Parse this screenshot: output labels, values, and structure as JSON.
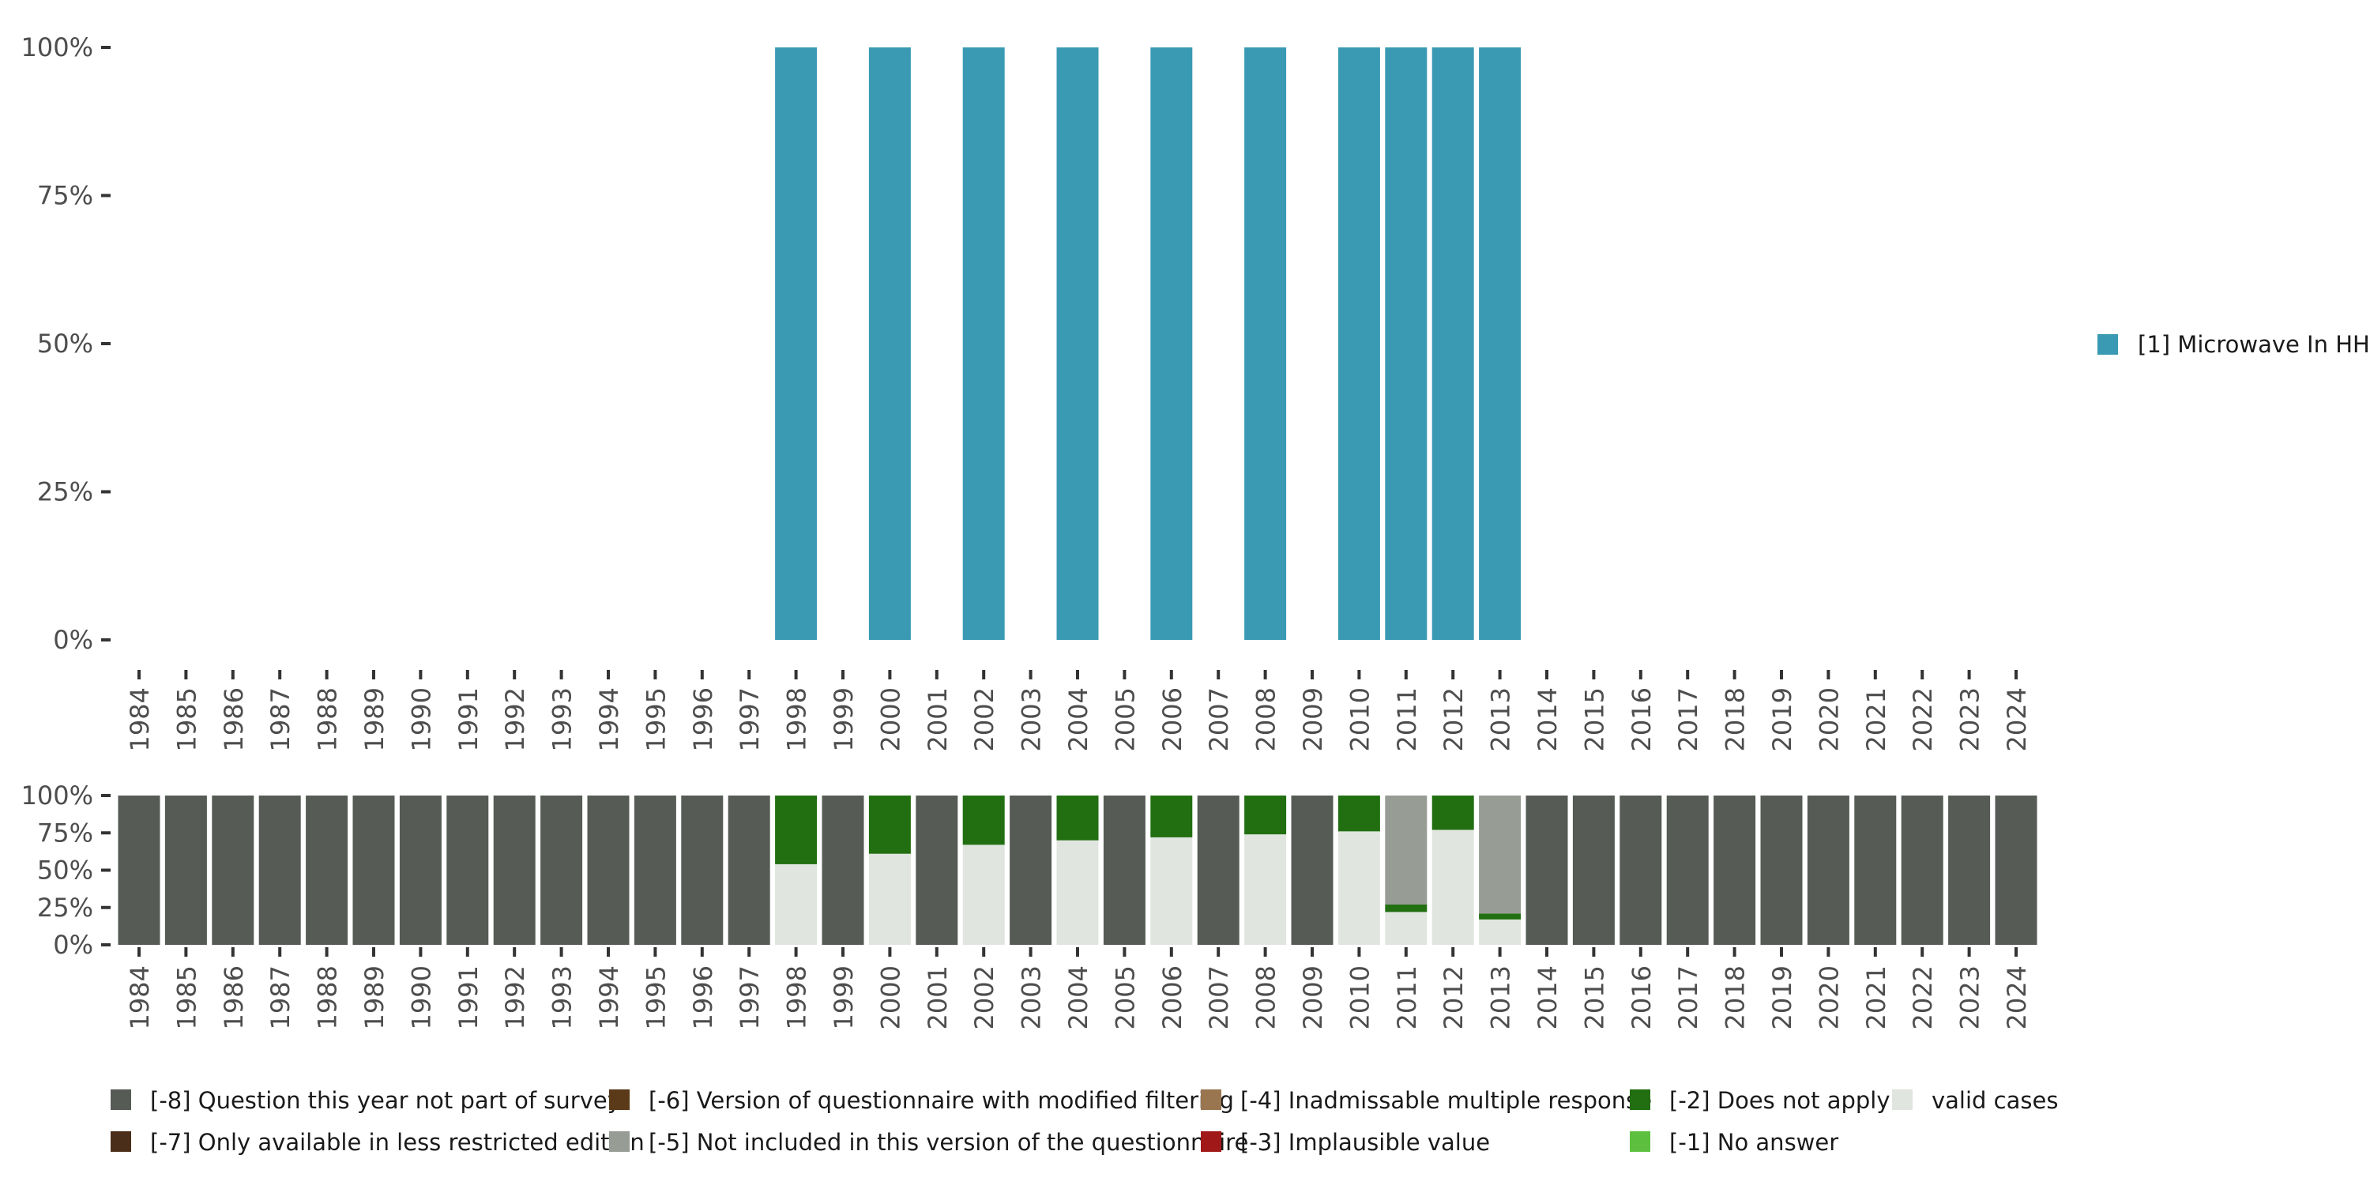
{
  "chart_data": [
    {
      "type": "bar",
      "name": "valid-value-distribution",
      "categories": [
        "1984",
        "1985",
        "1986",
        "1987",
        "1988",
        "1989",
        "1990",
        "1991",
        "1992",
        "1993",
        "1994",
        "1995",
        "1996",
        "1997",
        "1998",
        "1999",
        "2000",
        "2001",
        "2002",
        "2003",
        "2004",
        "2005",
        "2006",
        "2007",
        "2008",
        "2009",
        "2010",
        "2011",
        "2012",
        "2013",
        "2014",
        "2015",
        "2016",
        "2017",
        "2018",
        "2019",
        "2020",
        "2021",
        "2022",
        "2023",
        "2024"
      ],
      "y_ticks": [
        "0%",
        "25%",
        "50%",
        "75%",
        "100%"
      ],
      "ylim": [
        0,
        100
      ],
      "series": [
        {
          "name": "[1] Microwave In HH",
          "color": "#3a9ab3",
          "values": {
            "1998": 100,
            "2000": 100,
            "2002": 100,
            "2004": 100,
            "2006": 100,
            "2008": 100,
            "2010": 100,
            "2011": 100,
            "2012": 100,
            "2013": 100
          }
        }
      ],
      "legend_position": "right"
    },
    {
      "type": "bar",
      "name": "missing-value-distribution",
      "stacked": true,
      "categories": [
        "1984",
        "1985",
        "1986",
        "1987",
        "1988",
        "1989",
        "1990",
        "1991",
        "1992",
        "1993",
        "1994",
        "1995",
        "1996",
        "1997",
        "1998",
        "1999",
        "2000",
        "2001",
        "2002",
        "2003",
        "2004",
        "2005",
        "2006",
        "2007",
        "2008",
        "2009",
        "2010",
        "2011",
        "2012",
        "2013",
        "2014",
        "2015",
        "2016",
        "2017",
        "2018",
        "2019",
        "2020",
        "2021",
        "2022",
        "2023",
        "2024"
      ],
      "y_ticks": [
        "0%",
        "25%",
        "50%",
        "75%",
        "100%"
      ],
      "ylim": [
        0,
        100
      ],
      "stack_order": [
        "valid",
        "m1",
        "m2",
        "m3",
        "m4",
        "m5",
        "m6",
        "m7",
        "m8"
      ],
      "series": [
        {
          "key": "m8",
          "name": "[-8] Question this year not part of survey",
          "color": "#565b56"
        },
        {
          "key": "m7",
          "name": "[-7] Only available in less restricted edition",
          "color": "#4a2e1a"
        },
        {
          "key": "m6",
          "name": "[-6] Version of questionnaire with modified filtering",
          "color": "#5a3a18"
        },
        {
          "key": "m5",
          "name": "[-5] Not included in this version of the questionnaire",
          "color": "#979c94"
        },
        {
          "key": "m4",
          "name": "[-4] Inadmissable multiple response",
          "color": "#9a7650"
        },
        {
          "key": "m3",
          "name": "[-3] Implausible value",
          "color": "#a01818"
        },
        {
          "key": "m2",
          "name": "[-2] Does not apply",
          "color": "#226f12"
        },
        {
          "key": "m1",
          "name": "[-1] No answer",
          "color": "#5cc03e"
        },
        {
          "key": "valid",
          "name": "valid cases",
          "color": "#e1e5df"
        }
      ],
      "values": {
        "1998": {
          "valid": 54,
          "m2": 46
        },
        "2000": {
          "valid": 61,
          "m2": 39
        },
        "2002": {
          "valid": 67,
          "m2": 33
        },
        "2004": {
          "valid": 70,
          "m2": 30
        },
        "2006": {
          "valid": 72,
          "m2": 28
        },
        "2008": {
          "valid": 74,
          "m2": 26
        },
        "2010": {
          "valid": 76,
          "m2": 24
        },
        "2011": {
          "valid": 22,
          "m2": 5,
          "m5": 73
        },
        "2012": {
          "valid": 77,
          "m2": 23
        },
        "2013": {
          "valid": 17,
          "m2": 4,
          "m5": 79
        }
      },
      "default_category": "m8",
      "legend_position": "bottom"
    }
  ]
}
